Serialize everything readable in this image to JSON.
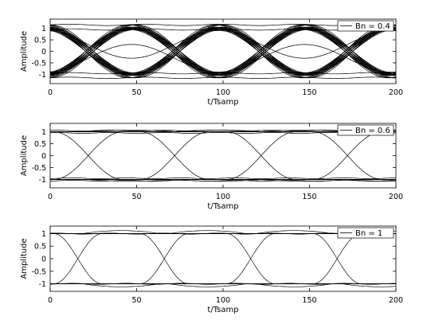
{
  "chart_data": [
    {
      "type": "line",
      "title": "",
      "xlabel": "t/Tsamp",
      "ylabel": "Amplitude",
      "xlim": [
        0,
        200
      ],
      "ylim": [
        -1.4,
        1.4
      ],
      "xticks": [
        0,
        50,
        100,
        150,
        200
      ],
      "yticks": [
        -1,
        -0.5,
        0,
        0.5,
        1
      ],
      "legend": {
        "label": "Bn = 0.4",
        "placement": "top-right"
      },
      "series": [
        {
          "name": "Bn = 0.4",
          "symbol_period": 50,
          "first_transition": 22,
          "levels": [
            -1.15,
            -0.95,
            -0.3,
            0.3,
            0.95,
            1.15
          ],
          "description_points": {
            "x": [
              0,
              22,
              47,
              72,
              97,
              122,
              147,
              172,
              197
            ],
            "y": [
              1.0,
              0.0,
              -1.05,
              0.0,
              1.05,
              0.0,
              -1.05,
              0.0,
              1.05
            ]
          }
        }
      ]
    },
    {
      "type": "line",
      "title": "",
      "xlabel": "t/Tsamp",
      "ylabel": "Amplitude",
      "xlim": [
        0,
        200
      ],
      "ylim": [
        -1.35,
        1.35
      ],
      "xticks": [
        0,
        50,
        100,
        150,
        200
      ],
      "yticks": [
        -1,
        -0.5,
        0,
        0.5,
        1
      ],
      "legend": {
        "label": "Bn = 0.6",
        "placement": "top-right"
      },
      "series": [
        {
          "name": "Bn = 0.6",
          "symbol_period": 50,
          "first_transition": 22,
          "levels": [
            -1.05,
            -0.95,
            0.95,
            1.05
          ],
          "description_points": {
            "x": [
              0,
              22,
              47,
              72,
              97,
              122,
              147,
              172,
              197
            ],
            "y": [
              1.0,
              0.0,
              -1.05,
              0.0,
              1.05,
              0.0,
              -1.05,
              0.0,
              1.05
            ]
          }
        }
      ]
    },
    {
      "type": "line",
      "title": "",
      "xlabel": "t/Tsamp",
      "ylabel": "Amplitude",
      "xlim": [
        0,
        200
      ],
      "ylim": [
        -1.3,
        1.3
      ],
      "xticks": [
        0,
        50,
        100,
        150,
        200
      ],
      "yticks": [
        -1,
        -0.5,
        0,
        0.5,
        1
      ],
      "legend": {
        "label": "Bn = 1",
        "placement": "top-right"
      },
      "series": [
        {
          "name": "Bn = 1",
          "symbol_period": 50,
          "first_transition": 16,
          "levels": [
            -1.0,
            1.0
          ],
          "overshoot": 1.12,
          "description_points": {
            "x": [
              0,
              16,
              40,
              66,
              90,
              116,
              140,
              166,
              190
            ],
            "y": [
              1.0,
              0.0,
              1.12,
              0.0,
              1.12,
              0.0,
              1.12,
              0.0,
              1.0
            ]
          }
        }
      ]
    }
  ]
}
